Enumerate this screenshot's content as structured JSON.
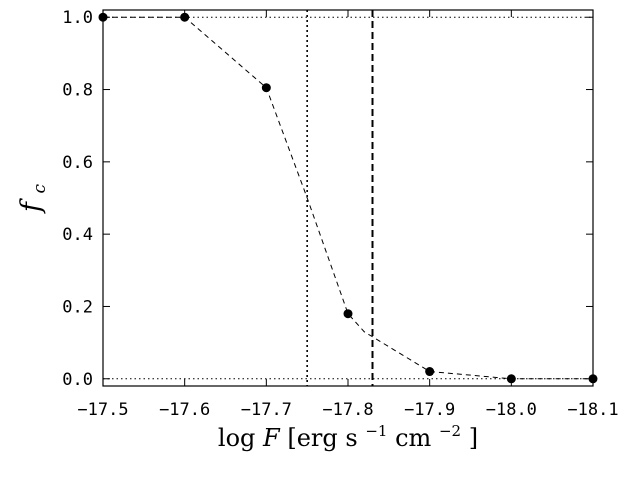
{
  "chart_data": {
    "type": "line",
    "xlabel": {
      "main": "log",
      "var": "F",
      "unit_open": "[erg s",
      "sup1": "−1",
      "unit_mid": "cm",
      "sup2": "−2",
      "unit_close": "]"
    },
    "ylabel": {
      "main": "f",
      "sub": "c"
    },
    "xlim": [
      -17.5,
      -18.1
    ],
    "ylim": [
      -0.02,
      1.02
    ],
    "x_ticks": [
      -17.5,
      -17.6,
      -17.7,
      -17.8,
      -17.9,
      -18.0,
      -18.1
    ],
    "x_tick_labels": [
      "−17.5",
      "−17.6",
      "−17.7",
      "−17.8",
      "−17.9",
      "−18.0",
      "−18.1"
    ],
    "y_ticks": [
      0.0,
      0.2,
      0.4,
      0.6,
      0.8,
      1.0
    ],
    "y_tick_labels": [
      "0.0",
      "0.2",
      "0.4",
      "0.6",
      "0.8",
      "1.0"
    ],
    "series": [
      {
        "x": [
          -17.5,
          -17.6,
          -17.7,
          -17.8,
          -17.9,
          -18.0,
          -18.1
        ],
        "y": [
          1.0,
          1.0,
          0.805,
          0.18,
          0.02,
          0.0,
          0.0
        ]
      }
    ],
    "curve": {
      "x": [
        -17.5,
        -17.6,
        -17.7,
        -17.75,
        -17.8,
        -17.82,
        -17.9,
        -18.0,
        -18.1
      ],
      "y": [
        1.0,
        1.0,
        0.805,
        0.5,
        0.18,
        0.13,
        0.02,
        0.0,
        0.0
      ]
    },
    "hlines": [
      {
        "y": 1.0,
        "style": "dotted"
      },
      {
        "y": 0.0,
        "style": "dotted"
      }
    ],
    "vlines": [
      {
        "x": -17.75,
        "style": "dotted"
      },
      {
        "x": -17.83,
        "style": "dashed"
      }
    ],
    "grid": false,
    "colors": {
      "line": "#000000",
      "marker": "#000000",
      "background": "#ffffff"
    }
  }
}
